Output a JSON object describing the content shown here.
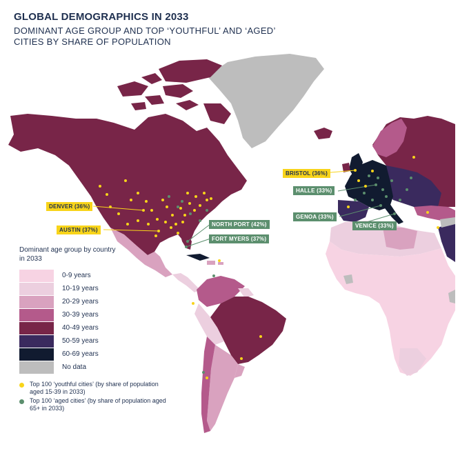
{
  "header": {
    "title": "GLOBAL DEMOGRAPHICS IN 2033",
    "subtitle": "DOMINANT AGE GROUP AND TOP ‘YOUTHFUL’ AND ‘AGED’ CITIES BY SHARE OF POPULATION"
  },
  "colors": {
    "age_0_9": "#f7d3e3",
    "age_10_19": "#eccfdf",
    "age_20_29": "#d9a2bf",
    "age_30_39": "#b45a8b",
    "age_40_49": "#782548",
    "age_50_59": "#3a2a5e",
    "age_60_69": "#111b30",
    "no_data": "#bdbdbd",
    "youthful_dot": "#f8d41a",
    "aged_dot": "#5c8f6e"
  },
  "callouts": [
    {
      "label": "DENVER (36%)",
      "type": "youthful"
    },
    {
      "label": "AUSTIN (37%)",
      "type": "youthful"
    },
    {
      "label": "NORTH PORT (42%)",
      "type": "aged"
    },
    {
      "label": "FORT MYERS (37%)",
      "type": "aged"
    },
    {
      "label": "BRISTOL (36%)",
      "type": "youthful"
    },
    {
      "label": "HALLE (33%)",
      "type": "aged"
    },
    {
      "label": "GENOA (33%)",
      "type": "aged"
    },
    {
      "label": "VENICE (33%)",
      "type": "aged"
    }
  ],
  "legend": {
    "title": "Dominant age group by country in 2033",
    "items": [
      {
        "label": "0-9 years",
        "color": "#f7d3e3"
      },
      {
        "label": "10-19 years",
        "color": "#eccfdf"
      },
      {
        "label": "20-29 years",
        "color": "#d9a2bf"
      },
      {
        "label": "30-39 years",
        "color": "#b45a8b"
      },
      {
        "label": "40-49 years",
        "color": "#782548"
      },
      {
        "label": "50-59 years",
        "color": "#3a2a5e"
      },
      {
        "label": "60-69 years",
        "color": "#111b30"
      },
      {
        "label": "No data",
        "color": "#bdbdbd"
      }
    ],
    "youthful_label": "Top 100 ‘youthful cities’ (by share of population aged 15-39 in 2033)",
    "aged_label": "Top 100 ‘aged cities’ (by share of population aged 65+ in 2033)"
  }
}
